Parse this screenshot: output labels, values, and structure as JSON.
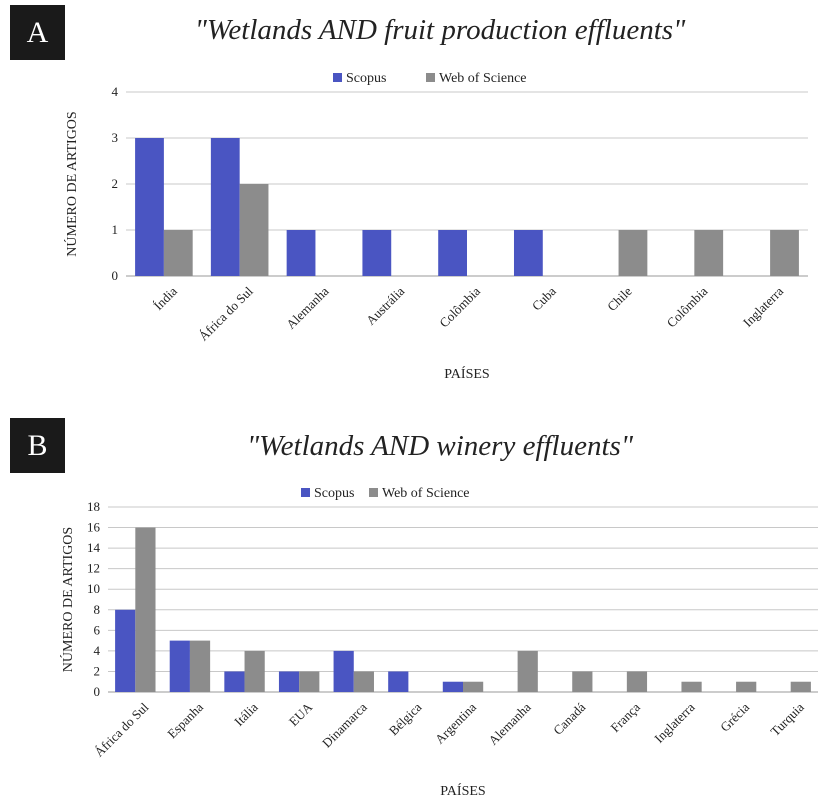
{
  "panels": {
    "a": {
      "label": "A",
      "title": "\"Wetlands AND fruit production effluents\""
    },
    "b": {
      "label": "B",
      "title": "\"Wetlands AND winery effluents\""
    }
  },
  "chart_data": [
    {
      "type": "bar",
      "title": "\"Wetlands AND fruit production effluents\"",
      "xlabel": "PAÍSES",
      "ylabel": "NÚMERO DE ARTIGOS",
      "categories": [
        "Índia",
        "África do Sul",
        "Alemanha",
        "Austrália",
        "Colômbia",
        "Cuba",
        "Chile",
        "Colômbia",
        "Inglaterra"
      ],
      "series": [
        {
          "name": "Scopus",
          "values": [
            3,
            3,
            1,
            1,
            1,
            1,
            0,
            0,
            0
          ],
          "color": "#4a55c2"
        },
        {
          "name": "Web of Science",
          "values": [
            1,
            2,
            0,
            0,
            0,
            0,
            1,
            1,
            1
          ],
          "color": "#8c8c8c"
        }
      ],
      "ylim": [
        0,
        4
      ],
      "yticks": [
        0,
        1,
        2,
        3,
        4
      ],
      "grid": true,
      "legend": "top-center"
    },
    {
      "type": "bar",
      "title": "\"Wetlands AND winery effluents\"",
      "xlabel": "PAÍSES",
      "ylabel": "NÚMERO DE ARTIGOS",
      "categories": [
        "África do Sul",
        "Espanha",
        "Itália",
        "EUA",
        "Dinamarca",
        "Bélgica",
        "Argentina",
        "Alemanha",
        "Canadá",
        "França",
        "Inglaterra",
        "Grécia",
        "Turquia"
      ],
      "series": [
        {
          "name": "Scopus",
          "values": [
            8,
            5,
            2,
            2,
            4,
            2,
            1,
            0,
            0,
            0,
            0,
            0,
            0
          ],
          "color": "#4a55c2"
        },
        {
          "name": "Web of Science",
          "values": [
            16,
            5,
            4,
            2,
            2,
            0,
            1,
            4,
            2,
            2,
            1,
            1,
            1
          ],
          "color": "#8c8c8c"
        }
      ],
      "ylim": [
        0,
        18
      ],
      "yticks": [
        0,
        2,
        4,
        6,
        8,
        10,
        12,
        14,
        16,
        18
      ],
      "grid": true,
      "legend": "top-center"
    }
  ]
}
